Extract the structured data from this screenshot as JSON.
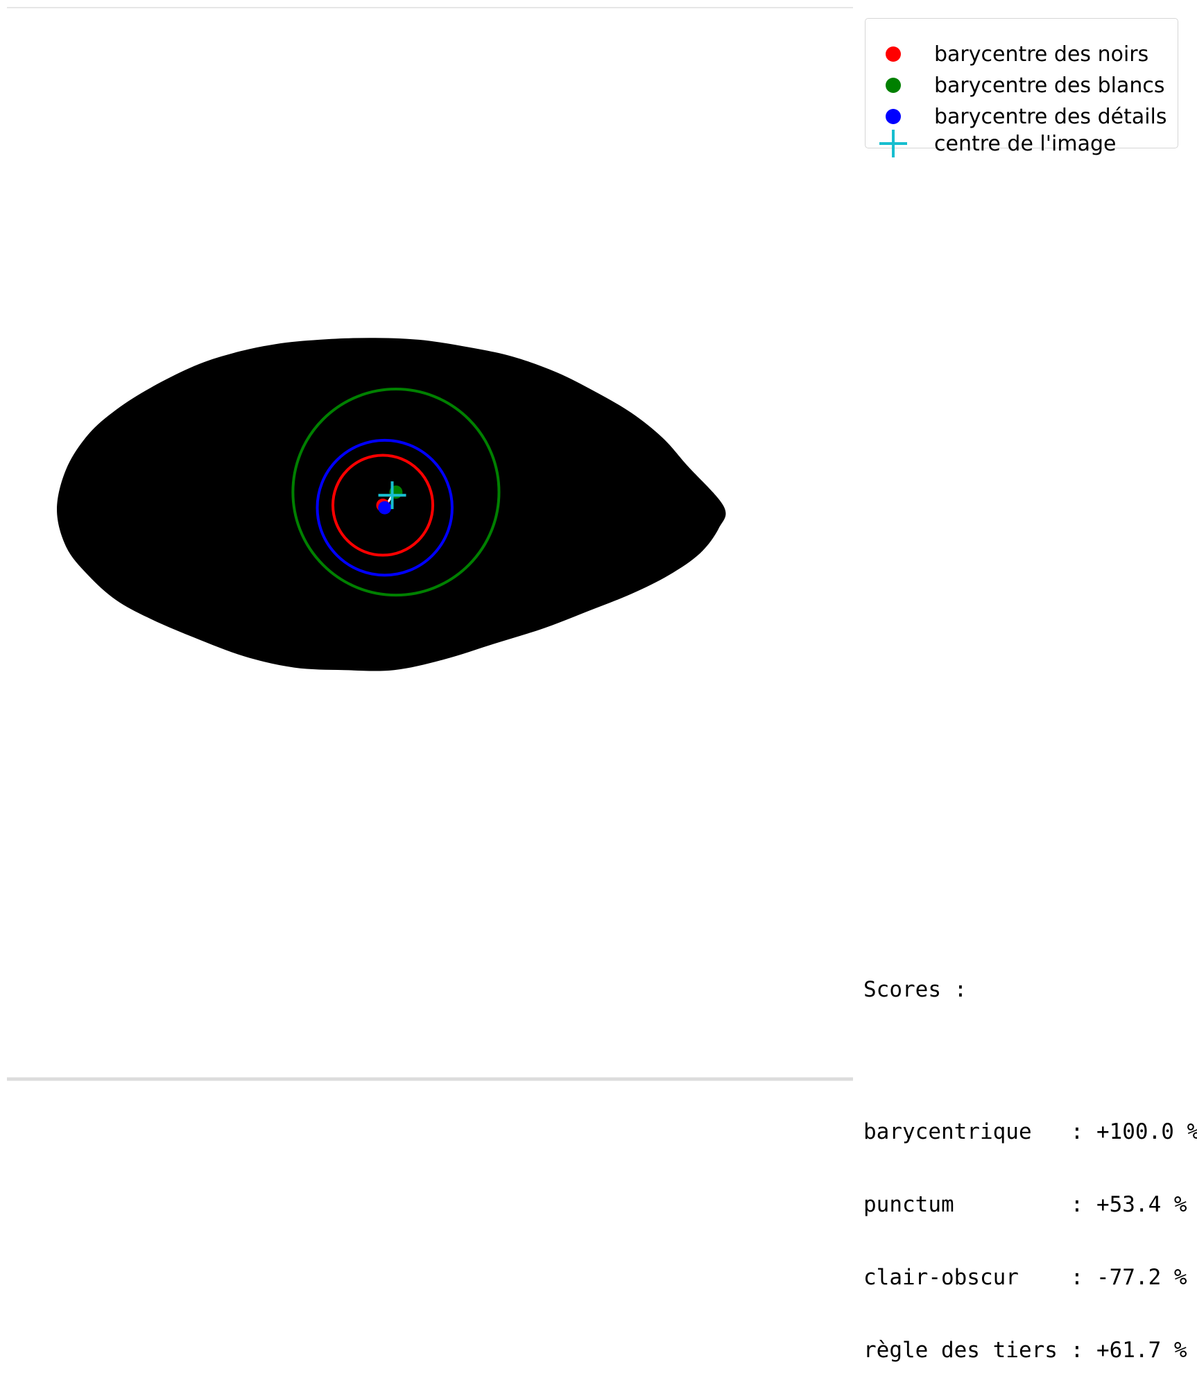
{
  "colors": {
    "background": "#ffffff",
    "shape": "#000000",
    "noirs": "#ff0000",
    "blancs": "#008000",
    "details": "#0000ff",
    "centre": "#17becf",
    "link": "#ffffff"
  },
  "legend": {
    "items": [
      {
        "label": "barycentre des noirs",
        "marker": "dot",
        "color": "#ff0000"
      },
      {
        "label": "barycentre des blancs",
        "marker": "dot",
        "color": "#008000"
      },
      {
        "label": "barycentre des détails",
        "marker": "dot",
        "color": "#0000ff"
      },
      {
        "label": "centre de l'image",
        "marker": "plus",
        "color": "#17becf"
      }
    ]
  },
  "scores": {
    "title": "Scores :",
    "lines": [
      "barycentrique   : +100.0 %",
      "punctum         : +53.4 %",
      "clair-obscur    : -77.2 %",
      "règle des tiers : +61.7 %"
    ]
  },
  "chart_data": {
    "type": "scatter",
    "xlim": [
      0,
      1220
    ],
    "ylim": [
      1550,
      0
    ],
    "grid": false,
    "legend_placement": "upper-right outside",
    "black_shape": {
      "outline": [
        [
          80,
          805
        ],
        [
          95,
          740
        ],
        [
          130,
          685
        ],
        [
          175,
          645
        ],
        [
          230,
          610
        ],
        [
          300,
          575
        ],
        [
          360,
          555
        ],
        [
          430,
          540
        ],
        [
          500,
          533
        ],
        [
          580,
          530
        ],
        [
          660,
          533
        ],
        [
          740,
          545
        ],
        [
          810,
          560
        ],
        [
          880,
          585
        ],
        [
          940,
          615
        ],
        [
          1000,
          650
        ],
        [
          1050,
          690
        ],
        [
          1090,
          735
        ],
        [
          1148,
          800
        ],
        [
          1140,
          835
        ],
        [
          1110,
          875
        ],
        [
          1060,
          910
        ],
        [
          1000,
          940
        ],
        [
          930,
          968
        ],
        [
          860,
          995
        ],
        [
          780,
          1020
        ],
        [
          700,
          1045
        ],
        [
          620,
          1062
        ],
        [
          540,
          1062
        ],
        [
          460,
          1058
        ],
        [
          380,
          1040
        ],
        [
          300,
          1010
        ],
        [
          230,
          980
        ],
        [
          175,
          950
        ],
        [
          130,
          910
        ],
        [
          95,
          865
        ]
      ]
    },
    "series": [
      {
        "name": "barycentre des noirs",
        "marker": "dot",
        "x": [
          602
        ],
        "y": [
          798
        ],
        "radius": 80
      },
      {
        "name": "barycentre des blancs",
        "marker": "dot",
        "x": [
          623
        ],
        "y": [
          777
        ],
        "radius": 165
      },
      {
        "name": "barycentre des détails",
        "marker": "dot",
        "x": [
          605
        ],
        "y": [
          802
        ],
        "radius": 108
      },
      {
        "name": "centre de l'image",
        "marker": "plus",
        "x": [
          617
        ],
        "y": [
          782
        ]
      }
    ],
    "links": [
      {
        "from": [
          605,
          802
        ],
        "to": [
          617,
          782
        ]
      }
    ]
  }
}
